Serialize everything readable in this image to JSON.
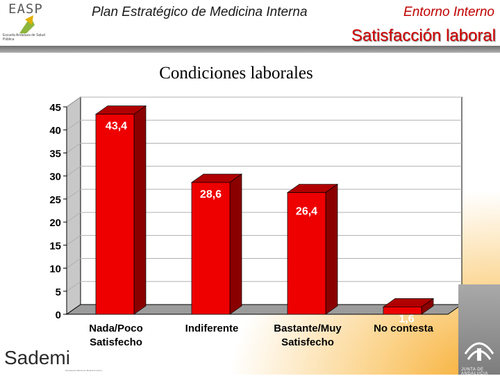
{
  "header": {
    "program_title": "Plan Estratégico de Medicina Interna",
    "section_title": "Entorno Interno",
    "page_title": "Satisfacción laboral"
  },
  "logos": {
    "easp_text": "EASP",
    "easp_caption": "Escuela Andaluza de Salud Pública",
    "sademi_text": "Sademi",
    "sademi_caption": "Sociedad Andaluza de Medicina Interna",
    "junta_caption": "JUNTA DE ANDALUCIA"
  },
  "colors": {
    "bar_front": "#ee0000",
    "bar_side": "#8a0000",
    "bar_top": "#b00000",
    "label_text": "#ffffff",
    "plot_bg": "#ffffff",
    "grid": "#b0b0b0"
  },
  "chart_data": {
    "type": "bar",
    "title": "Condiciones laborales",
    "categories": [
      "Nada/Poco\nSatisfecho",
      "Indiferente",
      "Bastante/Muy\nSatisfecho",
      "No contesta"
    ],
    "values": [
      43.4,
      28.6,
      26.4,
      1.6
    ],
    "value_labels": [
      "43,4",
      "28,6",
      "26,4",
      "1,6"
    ],
    "ylim": [
      0,
      45
    ],
    "yticks": [
      0,
      5,
      10,
      15,
      20,
      25,
      30,
      35,
      40,
      45
    ],
    "grid": true,
    "legend": "none",
    "xlabel": "",
    "ylabel": ""
  }
}
